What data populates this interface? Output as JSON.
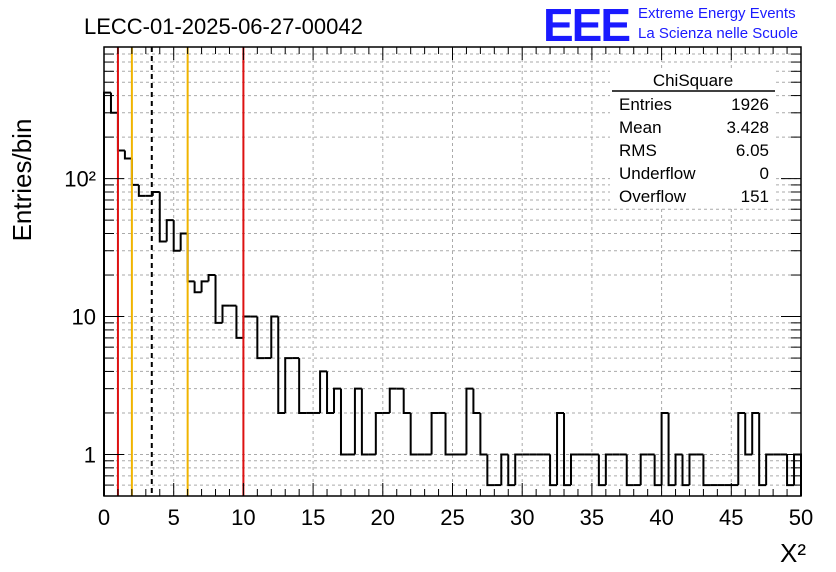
{
  "header": {
    "title": "LECC-01-2025-06-27-00042",
    "logo_letters": "EEE",
    "logo_line1": "Extreme Energy Events",
    "logo_line2": "La Scienza nelle Scuole"
  },
  "stats_box": {
    "title": "ChiSquare",
    "rows": [
      {
        "label": "Entries",
        "value": "1926"
      },
      {
        "label": "Mean",
        "value": "3.428"
      },
      {
        "label": "RMS",
        "value": "6.05"
      },
      {
        "label": "Underflow",
        "value": "0"
      },
      {
        "label": "Overflow",
        "value": "151"
      }
    ]
  },
  "colors": {
    "histogram": "#000000",
    "red_line": "#dd1111",
    "yellow_line": "#f0b400",
    "logo": "#1a1aff",
    "grid": "#aaaaaa"
  },
  "chart_data": {
    "type": "bar",
    "style": "step-histogram",
    "xlabel": "X²",
    "ylabel": "Entries/bin",
    "xlim": [
      0,
      50
    ],
    "ylim": [
      0.5,
      900
    ],
    "yscale": "log",
    "grid": true,
    "x_ticks": [
      "0",
      "5",
      "10",
      "15",
      "20",
      "25",
      "30",
      "35",
      "40",
      "45",
      "50"
    ],
    "y_ticks": [
      {
        "value": 1,
        "label": "1"
      },
      {
        "value": 10,
        "label": "10"
      },
      {
        "value": 100,
        "label": "10²"
      }
    ],
    "bin_width": 0.5,
    "values": [
      420,
      300,
      160,
      140,
      90,
      75,
      75,
      80,
      35,
      50,
      30,
      40,
      18,
      15,
      18,
      20,
      9,
      12,
      12,
      7,
      10,
      10,
      5,
      5,
      10,
      2,
      5,
      5,
      2,
      2,
      2,
      4,
      2,
      3,
      1,
      1,
      3,
      1,
      1,
      2,
      2,
      3,
      3,
      2,
      1,
      1,
      1,
      2,
      2,
      1,
      1,
      1,
      3,
      2,
      1,
      0.6,
      0.6,
      1,
      0.6,
      1,
      1,
      1,
      1,
      1,
      0.6,
      2,
      0.6,
      1,
      1,
      1,
      1,
      0.6,
      1,
      1,
      1,
      0.6,
      0.6,
      1,
      1,
      0.6,
      2,
      0.6,
      1,
      0.6,
      1,
      1,
      0.6,
      0.6,
      0.6,
      0.6,
      0.6,
      2,
      1,
      2,
      0.6,
      1,
      1,
      1,
      0.6,
      1
    ],
    "vertical_lines": [
      {
        "x": 1,
        "color": "red",
        "style": "solid"
      },
      {
        "x": 2,
        "color": "yellow",
        "style": "solid"
      },
      {
        "x": 3.428,
        "color": "black",
        "style": "dashed"
      },
      {
        "x": 6,
        "color": "yellow",
        "style": "solid"
      },
      {
        "x": 10,
        "color": "red",
        "style": "solid"
      }
    ]
  }
}
